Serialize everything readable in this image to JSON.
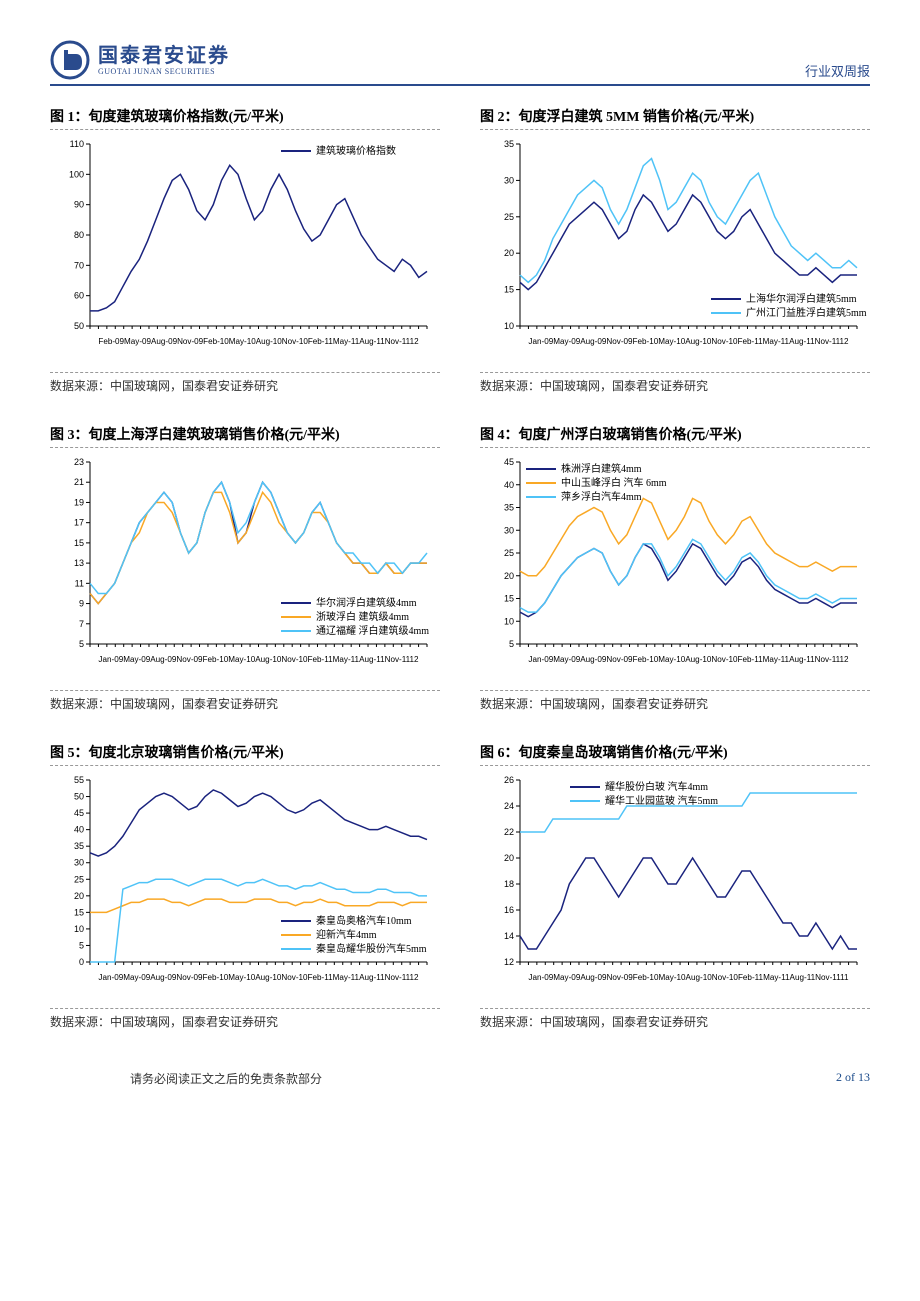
{
  "header": {
    "company_cn": "国泰君安证券",
    "company_en": "GUOTAI JUNAN SECURITIES",
    "report_type": "行业双周报"
  },
  "footer": {
    "disclaimer": "请务必阅读正文之后的免责条款部分",
    "page": "2 of 13"
  },
  "charts": [
    {
      "title": "图 1：旬度建筑玻璃价格指数(元/平米)",
      "source": "数据来源：中国玻璃网，国泰君安证券研究",
      "type": "line",
      "ylim": [
        50,
        110
      ],
      "ytick_step": 10,
      "x_labels": [
        "Feb-09",
        "May-09",
        "Aug-09",
        "Nov-09",
        "Feb-10",
        "May-10",
        "Aug-10",
        "Nov-10",
        "Feb-11",
        "May-11",
        "Aug-11",
        "Nov-11",
        "12"
      ],
      "legend_pos": "top-right",
      "series": [
        {
          "name": "建筑玻璃价格指数",
          "color": "#1a237e",
          "values": [
            55,
            55,
            56,
            58,
            63,
            68,
            72,
            78,
            85,
            92,
            98,
            100,
            95,
            88,
            85,
            90,
            98,
            103,
            100,
            92,
            85,
            88,
            95,
            100,
            95,
            88,
            82,
            78,
            80,
            85,
            90,
            92,
            86,
            80,
            76,
            72,
            70,
            68,
            72,
            70,
            66,
            68
          ]
        }
      ]
    },
    {
      "title": "图 2：旬度浮白建筑 5MM 销售价格(元/平米)",
      "source": "数据来源：中国玻璃网，国泰君安证券研究",
      "type": "line",
      "ylim": [
        10,
        35
      ],
      "ytick_step": 5,
      "x_labels": [
        "Jan-09",
        "May-09",
        "Aug-09",
        "Nov-09",
        "Feb-10",
        "May-10",
        "Aug-10",
        "Nov-10",
        "Feb-11",
        "May-11",
        "Aug-11",
        "Nov-11",
        "12"
      ],
      "legend_pos": "bottom-right",
      "series": [
        {
          "name": "上海华尔润浮白建筑5mm",
          "color": "#1a237e",
          "values": [
            16,
            15,
            16,
            18,
            20,
            22,
            24,
            25,
            26,
            27,
            26,
            24,
            22,
            23,
            26,
            28,
            27,
            25,
            23,
            24,
            26,
            28,
            27,
            25,
            23,
            22,
            23,
            25,
            26,
            24,
            22,
            20,
            19,
            18,
            17,
            17,
            18,
            17,
            16,
            17,
            17,
            17
          ]
        },
        {
          "name": "广州江门益胜浮白建筑5mm",
          "color": "#4fc3f7",
          "values": [
            17,
            16,
            17,
            19,
            22,
            24,
            26,
            28,
            29,
            30,
            29,
            26,
            24,
            26,
            29,
            32,
            33,
            30,
            26,
            27,
            29,
            31,
            30,
            27,
            25,
            24,
            26,
            28,
            30,
            31,
            28,
            25,
            23,
            21,
            20,
            19,
            20,
            19,
            18,
            18,
            19,
            18
          ]
        }
      ]
    },
    {
      "title": "图 3：旬度上海浮白建筑玻璃销售价格(元/平米)",
      "source": "数据来源：中国玻璃网，国泰君安证券研究",
      "type": "line",
      "ylim": [
        5,
        23
      ],
      "ytick_step": 2,
      "x_labels": [
        "Jan-09",
        "May-09",
        "Aug-09",
        "Nov-09",
        "Feb-10",
        "May-10",
        "Aug-10",
        "Nov-10",
        "Feb-11",
        "May-11",
        "Aug-11",
        "Nov-11",
        "12"
      ],
      "legend_pos": "bottom-right",
      "series": [
        {
          "name": "华尔润浮白建筑级4mm",
          "color": "#1a237e",
          "values": [
            10,
            9,
            10,
            11,
            13,
            15,
            17,
            18,
            19,
            20,
            19,
            16,
            14,
            15,
            18,
            20,
            21,
            19,
            15,
            16,
            19,
            21,
            20,
            18,
            16,
            15,
            16,
            18,
            19,
            17,
            15,
            14,
            13,
            13,
            12,
            12,
            13,
            12,
            12,
            13,
            13,
            13
          ]
        },
        {
          "name": "浙玻浮白 建筑级4mm",
          "color": "#f9a825",
          "values": [
            10,
            9,
            10,
            11,
            13,
            15,
            16,
            18,
            19,
            19,
            18,
            16,
            14,
            15,
            18,
            20,
            20,
            18,
            15,
            16,
            18,
            20,
            19,
            17,
            16,
            15,
            16,
            18,
            18,
            17,
            15,
            14,
            13,
            13,
            12,
            12,
            13,
            12,
            12,
            13,
            13,
            13
          ]
        },
        {
          "name": "通辽福耀 浮白建筑级4mm",
          "color": "#4fc3f7",
          "values": [
            11,
            10,
            10,
            11,
            13,
            15,
            17,
            18,
            19,
            20,
            19,
            16,
            14,
            15,
            18,
            20,
            21,
            19,
            16,
            17,
            19,
            21,
            20,
            18,
            16,
            15,
            16,
            18,
            19,
            17,
            15,
            14,
            14,
            13,
            13,
            12,
            13,
            13,
            12,
            13,
            13,
            14
          ]
        }
      ]
    },
    {
      "title": "图 4：旬度广州浮白玻璃销售价格(元/平米)",
      "source": "数据来源：中国玻璃网，国泰君安证券研究",
      "type": "line",
      "ylim": [
        5,
        45
      ],
      "ytick_step": 5,
      "x_labels": [
        "Jan-09",
        "May-09",
        "Aug-09",
        "Nov-09",
        "Feb-10",
        "May-10",
        "Aug-10",
        "Nov-10",
        "Feb-11",
        "May-11",
        "Aug-11",
        "Nov-11",
        "12"
      ],
      "legend_pos": "top-left",
      "series": [
        {
          "name": "株洲浮白建筑4mm",
          "color": "#1a237e",
          "values": [
            12,
            11,
            12,
            14,
            17,
            20,
            22,
            24,
            25,
            26,
            25,
            21,
            18,
            20,
            24,
            27,
            26,
            23,
            19,
            21,
            24,
            27,
            26,
            23,
            20,
            18,
            20,
            23,
            24,
            22,
            19,
            17,
            16,
            15,
            14,
            14,
            15,
            14,
            13,
            14,
            14,
            14
          ]
        },
        {
          "name": "中山玉峰浮白 汽车 6mm",
          "color": "#f9a825",
          "values": [
            21,
            20,
            20,
            22,
            25,
            28,
            31,
            33,
            34,
            35,
            34,
            30,
            27,
            29,
            33,
            37,
            36,
            32,
            28,
            30,
            33,
            37,
            36,
            32,
            29,
            27,
            29,
            32,
            33,
            30,
            27,
            25,
            24,
            23,
            22,
            22,
            23,
            22,
            21,
            22,
            22,
            22
          ]
        },
        {
          "name": "萍乡浮白汽车4mm",
          "color": "#4fc3f7",
          "values": [
            13,
            12,
            12,
            14,
            17,
            20,
            22,
            24,
            25,
            26,
            25,
            21,
            18,
            20,
            24,
            27,
            27,
            24,
            20,
            22,
            25,
            28,
            27,
            24,
            21,
            19,
            21,
            24,
            25,
            23,
            20,
            18,
            17,
            16,
            15,
            15,
            16,
            15,
            14,
            15,
            15,
            15
          ]
        }
      ]
    },
    {
      "title": "图 5：旬度北京玻璃销售价格(元/平米)",
      "source": "数据来源：中国玻璃网，国泰君安证券研究",
      "type": "line",
      "ylim": [
        0,
        55
      ],
      "ytick_step": 5,
      "x_labels": [
        "Jan-09",
        "May-09",
        "Aug-09",
        "Nov-09",
        "Feb-10",
        "May-10",
        "Aug-10",
        "Nov-10",
        "Feb-11",
        "May-11",
        "Aug-11",
        "Nov-11",
        "12"
      ],
      "legend_pos": "bottom-right",
      "series": [
        {
          "name": "秦皇岛奥格汽车10mm",
          "color": "#1a237e",
          "values": [
            33,
            32,
            33,
            35,
            38,
            42,
            46,
            48,
            50,
            51,
            50,
            48,
            46,
            47,
            50,
            52,
            51,
            49,
            47,
            48,
            50,
            51,
            50,
            48,
            46,
            45,
            46,
            48,
            49,
            47,
            45,
            43,
            42,
            41,
            40,
            40,
            41,
            40,
            39,
            38,
            38,
            37
          ]
        },
        {
          "name": "迎新汽车4mm",
          "color": "#f9a825",
          "values": [
            15,
            15,
            15,
            16,
            17,
            18,
            18,
            19,
            19,
            19,
            18,
            18,
            17,
            18,
            19,
            19,
            19,
            18,
            18,
            18,
            19,
            19,
            19,
            18,
            18,
            17,
            18,
            18,
            19,
            18,
            18,
            17,
            17,
            17,
            17,
            18,
            18,
            18,
            17,
            18,
            18,
            18
          ]
        },
        {
          "name": "秦皇岛耀华股份汽车5mm",
          "color": "#4fc3f7",
          "values": [
            0,
            0,
            0,
            0,
            22,
            23,
            24,
            24,
            25,
            25,
            25,
            24,
            23,
            24,
            25,
            25,
            25,
            24,
            23,
            24,
            24,
            25,
            24,
            23,
            23,
            22,
            23,
            23,
            24,
            23,
            22,
            22,
            21,
            21,
            21,
            22,
            22,
            21,
            21,
            21,
            20,
            20
          ]
        }
      ]
    },
    {
      "title": "图 6：旬度秦皇岛玻璃销售价格(元/平米)",
      "source": "数据来源：中国玻璃网，国泰君安证券研究",
      "type": "line",
      "ylim": [
        12,
        26
      ],
      "ytick_step": 2,
      "x_labels": [
        "Jan-09",
        "May-09",
        "Aug-09",
        "Nov-09",
        "Feb-10",
        "May-10",
        "Aug-10",
        "Nov-10",
        "Feb-11",
        "May-11",
        "Aug-11",
        "Nov-11",
        "11"
      ],
      "legend_pos": "top-left-inset",
      "series": [
        {
          "name": "耀华股份白玻 汽车4mm",
          "color": "#1a237e",
          "values": [
            14,
            13,
            13,
            14,
            15,
            16,
            18,
            19,
            20,
            20,
            19,
            18,
            17,
            18,
            19,
            20,
            20,
            19,
            18,
            18,
            19,
            20,
            19,
            18,
            17,
            17,
            18,
            19,
            19,
            18,
            17,
            16,
            15,
            15,
            14,
            14,
            15,
            14,
            13,
            14,
            13,
            13
          ]
        },
        {
          "name": "耀华工业园蓝玻 汽车5mm",
          "color": "#4fc3f7",
          "values": [
            22,
            22,
            22,
            22,
            23,
            23,
            23,
            23,
            23,
            23,
            23,
            23,
            23,
            24,
            24,
            24,
            24,
            24,
            24,
            24,
            24,
            24,
            24,
            24,
            24,
            24,
            24,
            24,
            25,
            25,
            25,
            25,
            25,
            25,
            25,
            25,
            25,
            25,
            25,
            25,
            25,
            25
          ]
        }
      ]
    }
  ]
}
